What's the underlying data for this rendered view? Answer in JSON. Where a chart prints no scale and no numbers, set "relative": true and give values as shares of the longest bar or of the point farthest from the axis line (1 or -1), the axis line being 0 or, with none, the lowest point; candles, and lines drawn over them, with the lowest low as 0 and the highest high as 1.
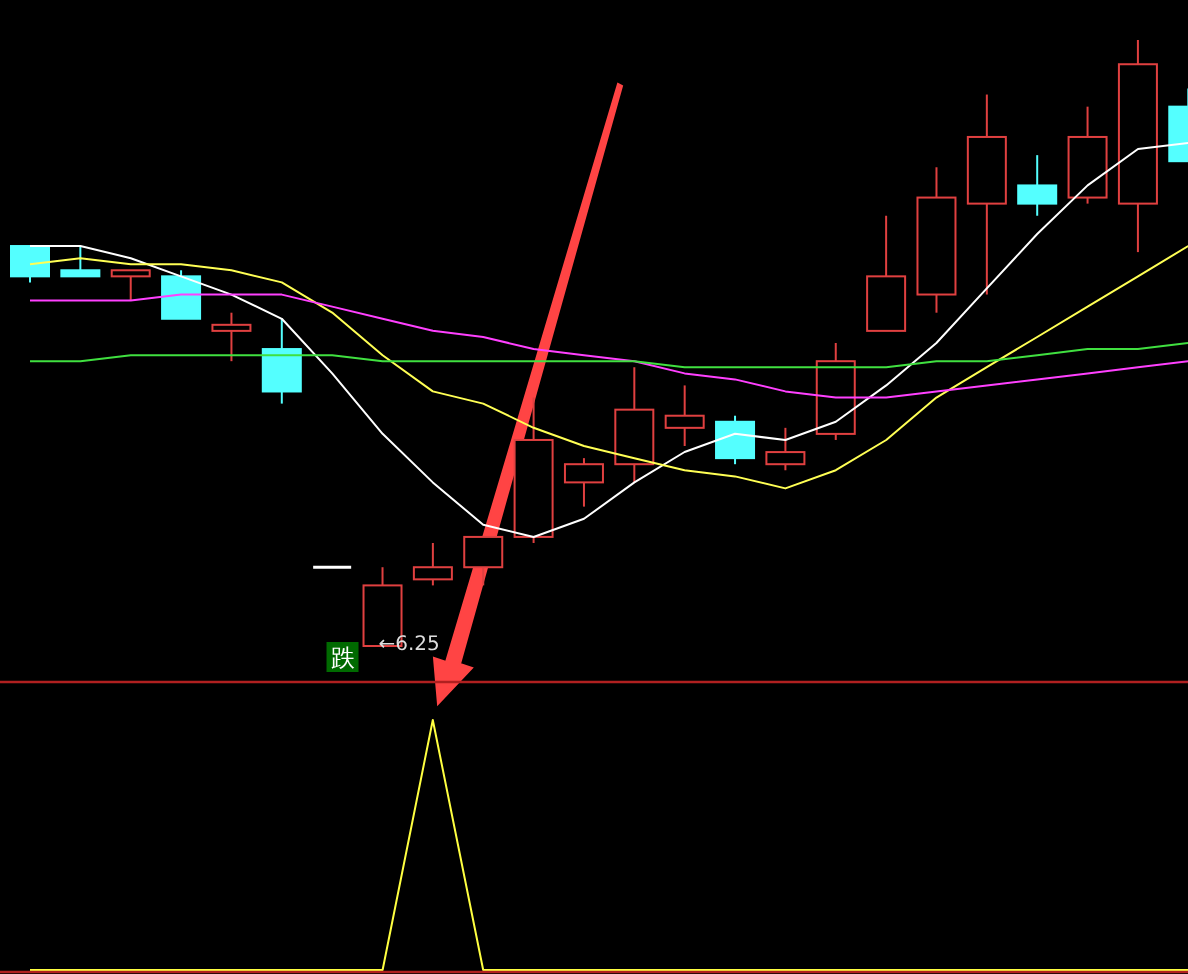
{
  "chart_data": [
    {
      "type": "candlestick",
      "relative": true,
      "categories": [
        null,
        null,
        null,
        null,
        null,
        null,
        null,
        null,
        null,
        null,
        null,
        null,
        null,
        null,
        null,
        null,
        null,
        null,
        null,
        null,
        null,
        null,
        null,
        null
      ],
      "ohlc": [
        [
          0.66,
          0.66,
          0.6,
          0.61
        ],
        [
          0.62,
          0.66,
          0.61,
          0.61
        ],
        [
          0.61,
          0.62,
          0.57,
          0.62
        ],
        [
          0.61,
          0.62,
          0.54,
          0.54
        ],
        [
          0.52,
          0.55,
          0.47,
          0.53
        ],
        [
          0.49,
          0.54,
          0.4,
          0.42
        ],
        [
          0.13,
          0.13,
          0.13,
          0.13
        ],
        [
          0,
          0.13,
          0,
          0.1
        ],
        [
          0.11,
          0.17,
          0.1,
          0.13
        ],
        [
          0.13,
          0.18,
          0.1,
          0.18
        ],
        [
          0.18,
          0.41,
          0.17,
          0.34
        ],
        [
          0.27,
          0.31,
          0.23,
          0.3
        ],
        [
          0.3,
          0.46,
          0.27,
          0.39
        ],
        [
          0.36,
          0.43,
          0.33,
          0.38
        ],
        [
          0.37,
          0.38,
          0.3,
          0.31
        ],
        [
          0.3,
          0.36,
          0.29,
          0.32
        ],
        [
          0.35,
          0.5,
          0.34,
          0.47
        ],
        [
          0.52,
          0.71,
          0.52,
          0.61
        ],
        [
          0.58,
          0.79,
          0.55,
          0.74
        ],
        [
          0.73,
          0.91,
          0.58,
          0.84
        ],
        [
          0.76,
          0.81,
          0.71,
          0.73
        ],
        [
          0.74,
          0.89,
          0.73,
          0.84
        ],
        [
          0.73,
          1,
          0.65,
          0.96
        ],
        [
          0.89,
          0.92,
          0.8,
          0.8
        ]
      ],
      "colors": [
        "#54ffff",
        "#54ffff",
        "#e04040",
        "#54ffff",
        "#e04040",
        "#54ffff",
        "#ffffff",
        "#e04040",
        "#e04040",
        "#e04040",
        "#e04040",
        "#e04040",
        "#e04040",
        "#e04040",
        "#54ffff",
        "#e04040",
        "#e04040",
        "#e04040",
        "#e04040",
        "#e04040",
        "#54ffff",
        "#e04040",
        "#e04040",
        "#54ffff"
      ],
      "series": [
        {
          "type": "line",
          "color": "#ffffff",
          "values": [
            0.66,
            0.66,
            0.64,
            0.61,
            0.58,
            0.54,
            0.45,
            0.35,
            0.27,
            0.2,
            0.18,
            0.21,
            0.27,
            0.32,
            0.35,
            0.34,
            0.37,
            0.43,
            0.5,
            0.59,
            0.68,
            0.76,
            0.82,
            0.83
          ]
        },
        {
          "type": "line",
          "color": "#ffff54",
          "values": [
            0.63,
            0.64,
            0.63,
            0.63,
            0.62,
            0.6,
            0.55,
            0.48,
            0.42,
            0.4,
            0.36,
            0.33,
            0.31,
            0.29,
            0.28,
            0.26,
            0.29,
            0.34,
            0.41,
            0.46,
            0.51,
            0.56,
            0.61,
            0.66
          ]
        },
        {
          "type": "line",
          "color": "#ff40ff",
          "values": [
            0.57,
            0.57,
            0.57,
            0.58,
            0.58,
            0.58,
            0.56,
            0.54,
            0.52,
            0.51,
            0.49,
            0.48,
            0.47,
            0.45,
            0.44,
            0.42,
            0.41,
            0.41,
            0.42,
            0.43,
            0.44,
            0.45,
            0.46,
            0.47
          ]
        },
        {
          "type": "line",
          "color": "#40e040",
          "values": [
            0.47,
            0.47,
            0.48,
            0.48,
            0.48,
            0.48,
            0.48,
            0.47,
            0.47,
            0.47,
            0.47,
            0.47,
            0.47,
            0.46,
            0.46,
            0.46,
            0.46,
            0.46,
            0.47,
            0.47,
            0.48,
            0.49,
            0.49,
            0.5
          ]
        }
      ],
      "annotations": [
        "←6.25",
        "跌"
      ]
    },
    {
      "type": "line",
      "relative": true,
      "categories": [
        null,
        null,
        null,
        null,
        null,
        null,
        null,
        null,
        null,
        null,
        null,
        null,
        null,
        null,
        null,
        null,
        null,
        null,
        null,
        null,
        null,
        null,
        null,
        null
      ],
      "series": [
        {
          "color": "#ffff40",
          "values": [
            0,
            0,
            0,
            0,
            0,
            0,
            0,
            0,
            1,
            0,
            0,
            0,
            0,
            0,
            0,
            0,
            0,
            0,
            0,
            0,
            0,
            0,
            0,
            0
          ]
        }
      ]
    }
  ]
}
